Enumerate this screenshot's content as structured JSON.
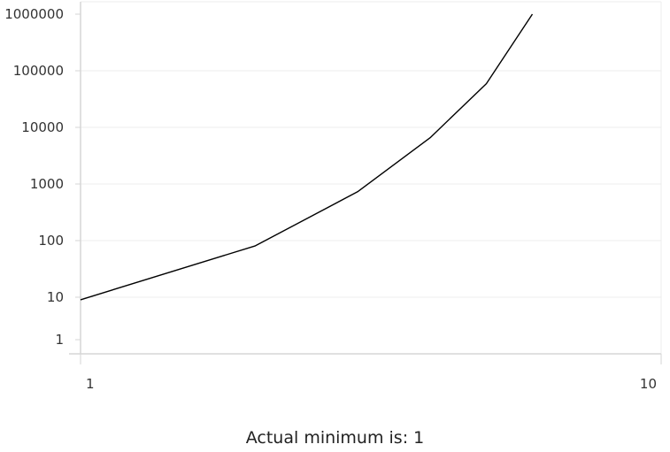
{
  "chart_data": {
    "type": "line",
    "title": "",
    "xlabel": "",
    "ylabel": "",
    "caption": "Actual minimum is: 1",
    "x_scale": "log",
    "y_scale": "log",
    "xlim": [
      1,
      10
    ],
    "ylim": [
      1,
      1000000
    ],
    "x_ticks": [
      {
        "value": 1,
        "label": "1"
      },
      {
        "value": 10,
        "label": "10"
      }
    ],
    "y_ticks": [
      {
        "value": 1,
        "label": "1"
      },
      {
        "value": 10,
        "label": "10"
      },
      {
        "value": 100,
        "label": "100"
      },
      {
        "value": 1000,
        "label": "1000"
      },
      {
        "value": 10000,
        "label": "10000"
      },
      {
        "value": 100000,
        "label": "100000"
      },
      {
        "value": 1000000,
        "label": "1000000"
      }
    ],
    "grid": true,
    "series": [
      {
        "color": "#000000",
        "x": [
          1,
          2,
          3,
          4,
          5,
          6
        ],
        "y": [
          9,
          81,
          729,
          6561,
          59049,
          1000000
        ]
      }
    ]
  }
}
